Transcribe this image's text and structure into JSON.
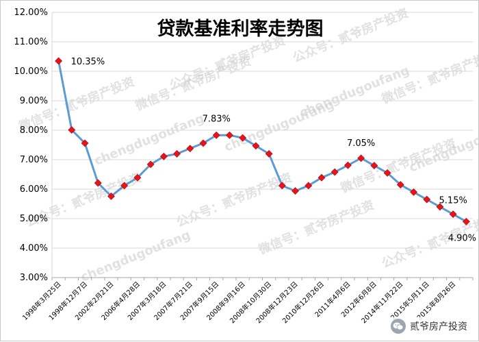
{
  "chart_data": {
    "type": "line",
    "title": "贷款基准利率走势图",
    "xlabel": "",
    "ylabel": "",
    "ylim": [
      3.0,
      12.0
    ],
    "y_ticks": [
      "3.00%",
      "4.00%",
      "5.00%",
      "6.00%",
      "7.00%",
      "8.00%",
      "9.00%",
      "10.00%",
      "11.00%",
      "12.00%"
    ],
    "grid": true,
    "legend": "none",
    "line_color": "#5b9bd5",
    "marker_color": "#e8141c",
    "x_tick_labels": [
      "1998年3月25日",
      "1998年12月7日",
      "2002年2月21日",
      "2006年4月28日",
      "2007年3月18日",
      "2007年7月21日",
      "2007年9月15日",
      "2008年9月16日",
      "2008年10月30日",
      "2008年12月23日",
      "2010年12月26日",
      "2011年4月6日",
      "2012年6月8日",
      "2014年11月22日",
      "2015年5月11日",
      "2015年8月26日"
    ],
    "x_tick_positions": [
      0,
      2,
      4,
      6,
      8,
      10,
      12,
      14,
      16,
      18,
      20,
      22,
      24,
      26,
      28,
      30
    ],
    "values": [
      10.35,
      8.01,
      7.56,
      6.21,
      5.76,
      6.12,
      6.39,
      6.84,
      7.11,
      7.2,
      7.38,
      7.56,
      7.83,
      7.83,
      7.74,
      7.47,
      7.2,
      6.12,
      5.94,
      6.12,
      6.39,
      6.58,
      6.81,
      7.05,
      6.8,
      6.55,
      6.15,
      5.9,
      5.65,
      5.4,
      5.15,
      4.9
    ],
    "data_labels": [
      {
        "index": 0,
        "text": "10.35%"
      },
      {
        "index": 12,
        "text": "7.83%"
      },
      {
        "index": 23,
        "text": "7.05%"
      },
      {
        "index": 30,
        "text": "5.15%"
      },
      {
        "index": 31,
        "text": "4.90%"
      }
    ]
  },
  "watermark": {
    "lines": [
      "公众号：贰爷房产投资",
      "chengdugoufang",
      "微信号：贰爷房产投资"
    ]
  },
  "badge": {
    "icon": "wechat-icon",
    "label": "贰爷房产投资"
  }
}
